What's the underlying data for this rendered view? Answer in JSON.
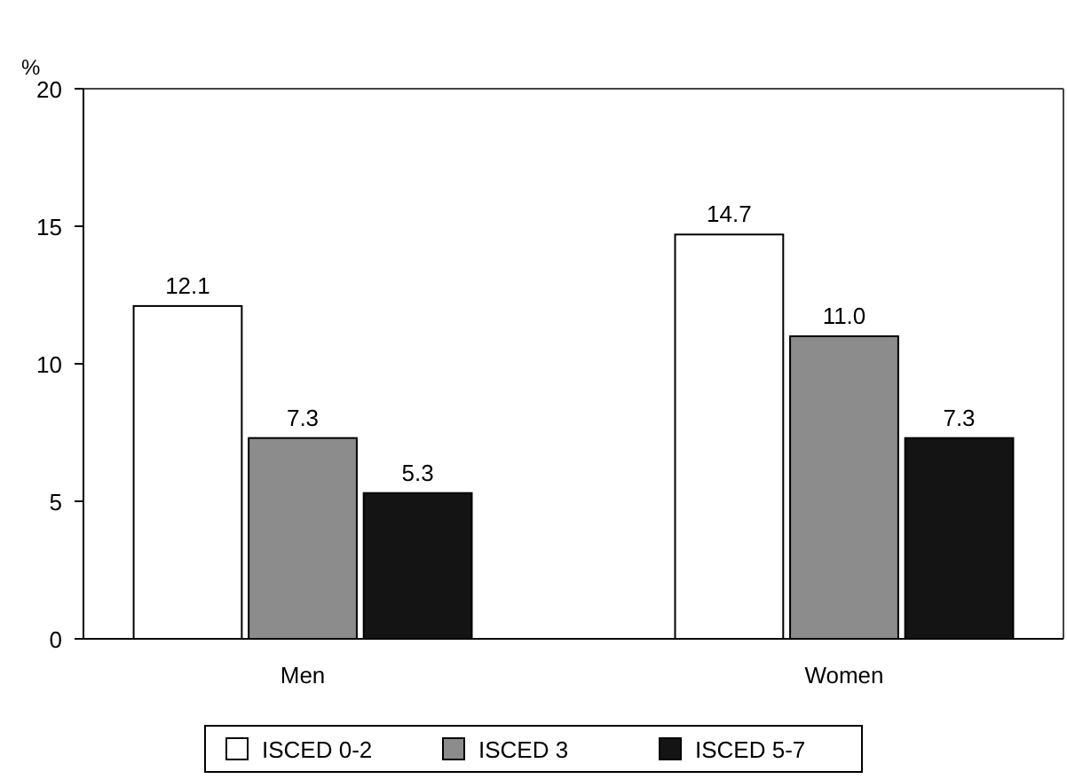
{
  "chart_data": {
    "type": "bar",
    "ylabel": "%",
    "categories": [
      "Men",
      "Women"
    ],
    "series": [
      {
        "name": "ISCED 0-2",
        "color": "#ffffff",
        "values": [
          12.1,
          14.7
        ]
      },
      {
        "name": "ISCED 3",
        "color": "#8c8c8c",
        "values": [
          7.3,
          11.0
        ]
      },
      {
        "name": "ISCED 5-7",
        "color": "#141414",
        "values": [
          5.3,
          7.3
        ]
      }
    ],
    "value_labels": [
      [
        "12.1",
        "14.7"
      ],
      [
        "7.3",
        "11.0"
      ],
      [
        "5.3",
        "7.3"
      ]
    ],
    "ylim": [
      0,
      20
    ],
    "yticks": [
      0,
      5,
      10,
      15,
      20
    ],
    "grid": false,
    "legend": "bottom"
  }
}
